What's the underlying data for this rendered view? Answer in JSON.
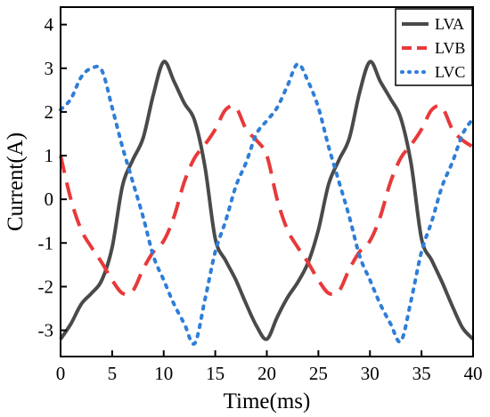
{
  "chart_data": {
    "type": "line",
    "title": "",
    "xlabel": "Time(ms)",
    "ylabel": "Current(A)",
    "xlim": [
      0,
      40
    ],
    "ylim": [
      -3.6,
      4.4
    ],
    "xticks": [
      0,
      5,
      10,
      15,
      20,
      25,
      30,
      35,
      40
    ],
    "yticks": [
      -3,
      -2,
      -1,
      0,
      1,
      2,
      3,
      4
    ],
    "grid": false,
    "legend_position": "top-right",
    "series": [
      {
        "name": "LVA",
        "color": "#4a4a4a",
        "style": "solid",
        "x": [
          0,
          1,
          2,
          3,
          4,
          5,
          6,
          7,
          8,
          9,
          10,
          11,
          12,
          13,
          14,
          15,
          16,
          17,
          18,
          19,
          20,
          21,
          22,
          23,
          24,
          25,
          26,
          27,
          28,
          29,
          30,
          31,
          32,
          33,
          34,
          35,
          36,
          37,
          38,
          39,
          40
        ],
        "y": [
          -3.2,
          -2.85,
          -2.4,
          -2.15,
          -1.85,
          -1.1,
          0.3,
          0.9,
          1.4,
          2.4,
          3.15,
          2.7,
          2.2,
          1.8,
          0.75,
          -0.9,
          -1.4,
          -1.85,
          -2.4,
          -2.9,
          -3.2,
          -2.7,
          -2.25,
          -1.9,
          -1.45,
          -0.7,
          0.35,
          0.9,
          1.4,
          2.45,
          3.15,
          2.7,
          2.3,
          1.85,
          0.8,
          -0.9,
          -1.4,
          -1.9,
          -2.45,
          -2.95,
          -3.2
        ]
      },
      {
        "name": "LVB",
        "color": "#e8393a",
        "style": "dashed",
        "x": [
          0,
          1,
          2,
          3,
          4,
          5,
          6,
          7,
          8,
          9,
          10,
          11,
          12,
          13,
          14,
          15,
          16,
          17,
          18,
          19,
          20,
          21,
          22,
          23,
          24,
          25,
          26,
          27,
          28,
          29,
          30,
          31,
          32,
          33,
          34,
          35,
          36,
          37,
          38,
          39,
          40
        ],
        "y": [
          1.0,
          0.0,
          -0.7,
          -1.1,
          -1.45,
          -1.85,
          -2.15,
          -2.1,
          -1.6,
          -1.2,
          -0.95,
          -0.4,
          0.4,
          0.95,
          1.25,
          1.6,
          2.05,
          2.1,
          1.6,
          1.35,
          1.0,
          0.0,
          -0.7,
          -1.1,
          -1.45,
          -1.85,
          -2.15,
          -2.1,
          -1.6,
          -1.2,
          -0.95,
          -0.4,
          0.4,
          0.95,
          1.25,
          1.6,
          2.05,
          2.1,
          1.6,
          1.35,
          1.2
        ]
      },
      {
        "name": "LVC",
        "color": "#2f7ed8",
        "style": "dotted",
        "x": [
          0,
          1,
          2,
          3,
          4,
          5,
          6,
          7,
          8,
          9,
          10,
          11,
          12,
          13,
          14,
          15,
          16,
          17,
          18,
          19,
          20,
          21,
          22,
          23,
          24,
          25,
          26,
          27,
          28,
          29,
          30,
          31,
          32,
          33,
          34,
          35,
          36,
          37,
          38,
          39,
          40
        ],
        "y": [
          2.05,
          2.3,
          2.8,
          3.0,
          2.95,
          2.1,
          1.2,
          0.4,
          -0.4,
          -1.3,
          -1.85,
          -2.4,
          -2.85,
          -3.3,
          -2.3,
          -1.2,
          -0.5,
          0.3,
          0.85,
          1.5,
          1.8,
          2.1,
          2.6,
          3.1,
          2.7,
          2.1,
          1.2,
          0.4,
          -0.4,
          -1.3,
          -1.85,
          -2.4,
          -2.85,
          -3.25,
          -2.3,
          -1.2,
          -0.5,
          0.3,
          0.85,
          1.5,
          1.85
        ]
      }
    ]
  }
}
